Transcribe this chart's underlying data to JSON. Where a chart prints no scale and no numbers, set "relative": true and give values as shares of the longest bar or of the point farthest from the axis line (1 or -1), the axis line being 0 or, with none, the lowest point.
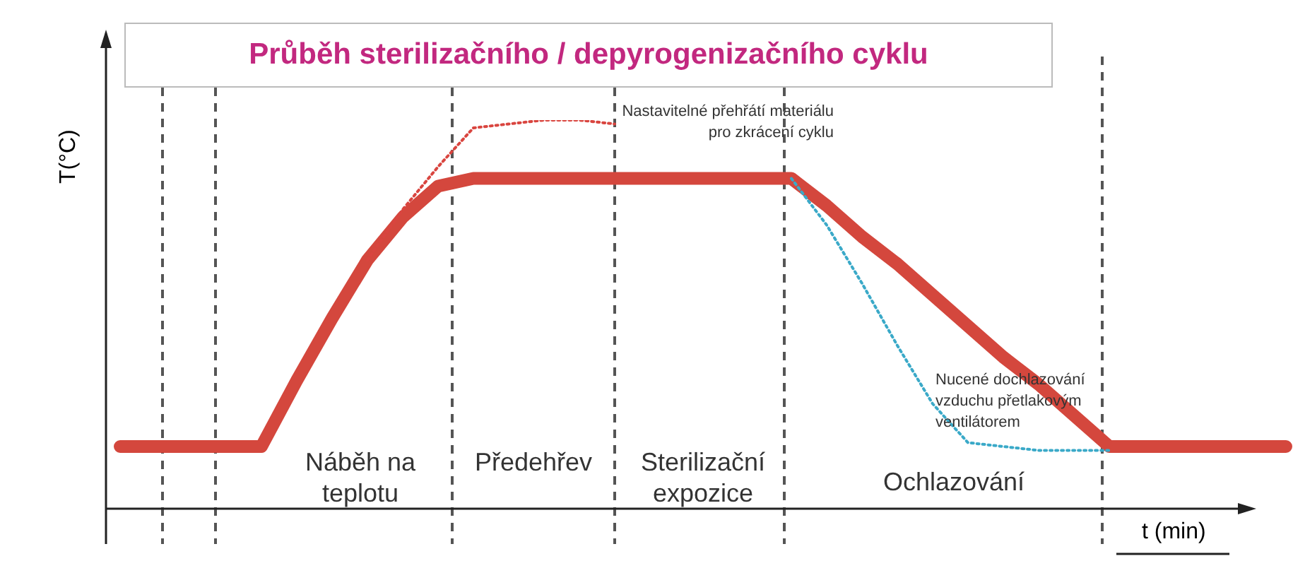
{
  "chart_data": {
    "type": "line",
    "title": "Průběh sterilizačního / depyrogenizačního cyklu",
    "xlabel": "t (min)",
    "ylabel": "T(°C)",
    "relative": true,
    "marker": "none",
    "categories": [
      null,
      null,
      null,
      null,
      null,
      null,
      null,
      null,
      null,
      null,
      null,
      null,
      null,
      null,
      null,
      null,
      null,
      null,
      null,
      null,
      null,
      null,
      null,
      null,
      null,
      null,
      null,
      null,
      null,
      null,
      null,
      null,
      null,
      null
    ],
    "series": [
      {
        "color": "#d4473d",
        "values": [
          0.16,
          0.16,
          0.16,
          0.16,
          0.16,
          0.33,
          0.49,
          0.64,
          0.75,
          0.83,
          0.85,
          0.85,
          0.85,
          0.85,
          0.85,
          0.85,
          0.85,
          0.85,
          0.85,
          0.85,
          0.78,
          0.7,
          0.63,
          0.55,
          0.47,
          0.39,
          0.32,
          0.24,
          0.16,
          0.16,
          0.16,
          0.16,
          0.16,
          0.16
        ]
      },
      {
        "color": "#d9453f",
        "line_style": "dotted",
        "values": [
          null,
          null,
          null,
          null,
          null,
          null,
          null,
          0.64,
          0.77,
          0.88,
          0.98,
          0.99,
          1,
          1,
          0.99,
          null,
          null,
          null,
          null,
          null,
          null,
          null,
          null,
          null,
          null,
          null,
          null,
          null,
          null,
          null,
          null,
          null,
          null,
          null
        ]
      },
      {
        "color": "#3aa9c8",
        "line_style": "dotted",
        "values": [
          null,
          null,
          null,
          null,
          null,
          null,
          null,
          null,
          null,
          null,
          null,
          null,
          null,
          null,
          null,
          null,
          null,
          null,
          null,
          0.85,
          0.73,
          0.58,
          0.42,
          0.27,
          0.17,
          0.16,
          0.15,
          0.15,
          0.15,
          null,
          null,
          null,
          null,
          null
        ]
      }
    ],
    "annotations": [
      "Náběh na teplotu",
      "Předehřev",
      "Sterilizační expozice",
      "Ochlazování",
      "Nastavitelné přehřátí materiálu pro zkrácení cyklu",
      "Nucené dochlazování vzduchu přetlakovým ventilátorem"
    ]
  }
}
